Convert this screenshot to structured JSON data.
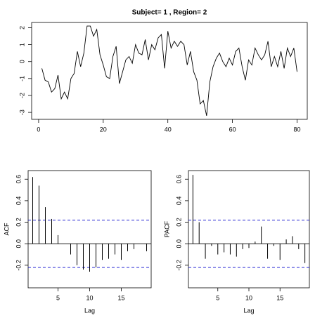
{
  "chart_data": [
    {
      "type": "line",
      "title": "Subject= 1 , Region= 2",
      "color": "#000000",
      "x": [
        1,
        2,
        3,
        4,
        5,
        6,
        7,
        8,
        9,
        10,
        11,
        12,
        13,
        14,
        15,
        16,
        17,
        18,
        19,
        20,
        21,
        22,
        23,
        24,
        25,
        26,
        27,
        28,
        29,
        30,
        31,
        32,
        33,
        34,
        35,
        36,
        37,
        38,
        39,
        40,
        41,
        42,
        43,
        44,
        45,
        46,
        47,
        48,
        49,
        50,
        51,
        52,
        53,
        54,
        55,
        56,
        57,
        58,
        59,
        60,
        61,
        62,
        63,
        64,
        65,
        66,
        67,
        68,
        69,
        70,
        71,
        72,
        73,
        74,
        75,
        76,
        77,
        78,
        79,
        80
      ],
      "values": [
        -0.4,
        -1.1,
        -1.2,
        -1.8,
        -1.6,
        -0.8,
        -2.2,
        -1.8,
        -2.2,
        -1.0,
        -0.7,
        0.6,
        -0.3,
        0.5,
        2.1,
        2.1,
        1.5,
        1.9,
        0.4,
        -0.2,
        -0.9,
        -1.0,
        0.3,
        0.9,
        -1.3,
        -0.6,
        0.1,
        0.3,
        -0.1,
        1.0,
        0.5,
        0.4,
        1.3,
        0.1,
        1.0,
        0.7,
        1.4,
        1.6,
        -0.4,
        1.8,
        0.8,
        1.2,
        0.9,
        1.2,
        1.0,
        -0.2,
        0.6,
        -0.6,
        -1.1,
        -2.5,
        -2.3,
        -3.2,
        -1.2,
        -0.3,
        0.2,
        0.5,
        0.0,
        -0.3,
        0.2,
        -0.2,
        0.6,
        0.8,
        -0.3,
        -1.1,
        0.1,
        -0.2,
        0.8,
        0.4,
        0.1,
        0.4,
        1.2,
        -0.3,
        0.3,
        -0.3,
        0.6,
        -0.4,
        0.8,
        0.3,
        0.8,
        -0.6
      ],
      "xlim": [
        -2.16,
        83.16
      ],
      "xticks": [
        0,
        20,
        40,
        60,
        80
      ],
      "ylim": [
        -3.41,
        2.31
      ],
      "yticks": [
        -3,
        -2,
        -1,
        0,
        1,
        2
      ]
    },
    {
      "type": "acf",
      "x_label": "Lag",
      "y_label": "ACF",
      "color": "#000000",
      "ci_color": "#0000cc",
      "x": [
        1,
        2,
        3,
        4,
        5,
        6,
        7,
        8,
        9,
        10,
        11,
        12,
        13,
        14,
        15,
        16,
        17,
        18,
        19
      ],
      "values": [
        0.62,
        0.54,
        0.34,
        0.23,
        0.08,
        0.0,
        -0.1,
        -0.2,
        -0.24,
        -0.26,
        -0.22,
        -0.15,
        -0.14,
        -0.1,
        -0.15,
        -0.07,
        -0.05,
        0.0,
        -0.07
      ],
      "ci": [
        0.22,
        -0.22
      ],
      "xlim": [
        0.28,
        19.72
      ],
      "xticks": [
        5,
        10,
        15
      ],
      "ylim": [
        -0.41,
        0.68
      ],
      "yticks": [
        -0.2,
        {
          "value": 0,
          "label": "0.0"
        },
        0.2,
        0.4,
        0.6
      ]
    },
    {
      "type": "acf",
      "x_label": "Lag",
      "y_label": "PACF",
      "color": "#000000",
      "ci_color": "#0000cc",
      "x": [
        1,
        2,
        3,
        4,
        5,
        6,
        7,
        8,
        9,
        10,
        11,
        12,
        13,
        14,
        15,
        16,
        17,
        18,
        19
      ],
      "values": [
        0.64,
        0.2,
        -0.14,
        -0.02,
        -0.1,
        -0.08,
        -0.1,
        -0.12,
        -0.05,
        -0.04,
        0.02,
        0.16,
        -0.14,
        -0.02,
        -0.15,
        0.04,
        0.07,
        -0.05,
        -0.18
      ],
      "ci": [
        0.22,
        -0.22
      ],
      "xlim": [
        0.28,
        19.72
      ],
      "xticks": [
        5,
        10,
        15
      ],
      "ylim": [
        -0.41,
        0.68
      ],
      "yticks": [
        -0.2,
        {
          "value": 0,
          "label": "0.0"
        },
        0.2,
        0.4,
        0.6
      ]
    }
  ]
}
